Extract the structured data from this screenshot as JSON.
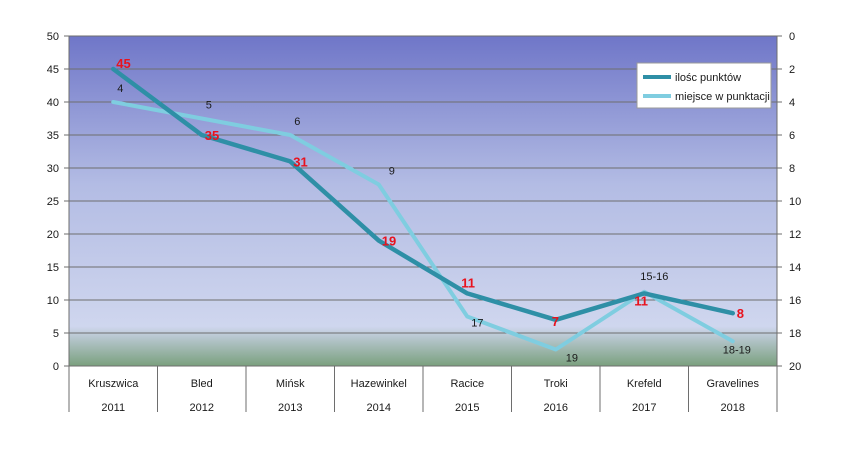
{
  "chart_data": {
    "type": "line",
    "categories": [
      {
        "name": "Kruszwica",
        "year": "2011"
      },
      {
        "name": "Bled",
        "year": "2012"
      },
      {
        "name": "Mińsk",
        "year": "2013"
      },
      {
        "name": "Hazewinkel",
        "year": "2014"
      },
      {
        "name": "Racice",
        "year": "2015"
      },
      {
        "name": "Troki",
        "year": "2016"
      },
      {
        "name": "Krefeld",
        "year": "2017"
      },
      {
        "name": "Gravelines",
        "year": "2018"
      }
    ],
    "y_left": {
      "min": 0,
      "max": 50,
      "ticks": [
        "0",
        "5",
        "10",
        "15",
        "20",
        "25",
        "30",
        "35",
        "40",
        "45",
        "50"
      ]
    },
    "y_right": {
      "min": 0,
      "max": 20,
      "reversed": true,
      "ticks": [
        "0",
        "2",
        "4",
        "6",
        "8",
        "10",
        "12",
        "14",
        "16",
        "18",
        "20"
      ]
    },
    "series": [
      {
        "name": "ilośc punktów",
        "axis": "left",
        "color": "#2e8fa6",
        "values": [
          45,
          35,
          31,
          19,
          11,
          7,
          11,
          8
        ],
        "labels": [
          "45",
          "35",
          "31",
          "19",
          "11",
          "7",
          "11",
          "8"
        ],
        "label_color": "#e8121d"
      },
      {
        "name": "miejsce w punktacji",
        "axis": "right",
        "color": "#7fcde0",
        "values": [
          4,
          5,
          6,
          9,
          17,
          19,
          15.5,
          18.5
        ],
        "labels": [
          "4",
          "5",
          "6",
          "9",
          "17",
          "19",
          "15-16",
          "18-19"
        ],
        "label_color": "#1a1a1a"
      }
    ],
    "grid": true,
    "legend_position": "top-right",
    "colors": {
      "plot_top": "#6f76c8",
      "plot_mid": "#cfd6ee",
      "plot_bottom": "#7aa07e"
    }
  }
}
